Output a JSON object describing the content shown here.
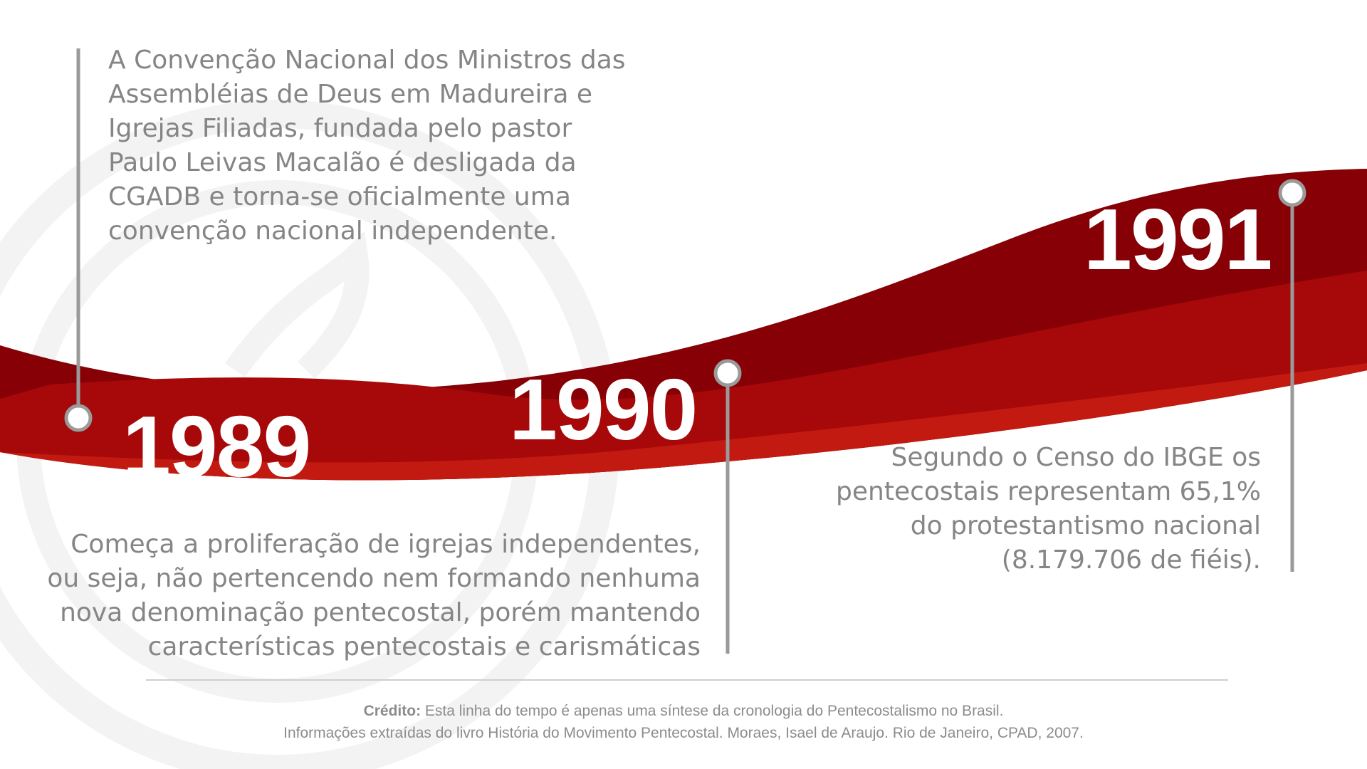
{
  "colors": {
    "ribbon_dark": "#860005",
    "ribbon_mid": "#a7080a",
    "ribbon_light": "#c21a10",
    "text_gray": "#858585",
    "line_gray": "#9a9a9a",
    "year_white": "#ffffff",
    "watermark": "#f3f3f3"
  },
  "events": [
    {
      "year": "1989",
      "text": [
        "A Convenção Nacional dos Ministros das",
        "Assembléias de Deus em Madureira e",
        "Igrejas Filiadas, fundada pelo pastor",
        "Paulo Leivas Macalão é desligada da",
        "CGADB e torna-se oficialmente uma",
        "convenção nacional independente."
      ]
    },
    {
      "year": "1990",
      "text": [
        "Começa a proliferação de igrejas independentes,",
        "ou seja, não pertencendo nem formando nenhuma",
        "nova denominação pentecostal, porém mantendo",
        "características pentecostais e carismáticas"
      ]
    },
    {
      "year": "1991",
      "text": [
        "Segundo o Censo do IBGE os",
        "pentecostais representam 65,1%",
        "do protestantismo nacional",
        "(8.179.706 de fiéis)."
      ]
    }
  ],
  "credit": {
    "label": "Crédito:",
    "line1": " Esta linha do tempo é apenas uma síntese da cronologia do Pentecostalismo no Brasil.",
    "line2": "Informações extraídas do livro História do Movimento Pentecostal. Moraes, Isael de Araujo. Rio de Janeiro, CPAD, 2007."
  }
}
